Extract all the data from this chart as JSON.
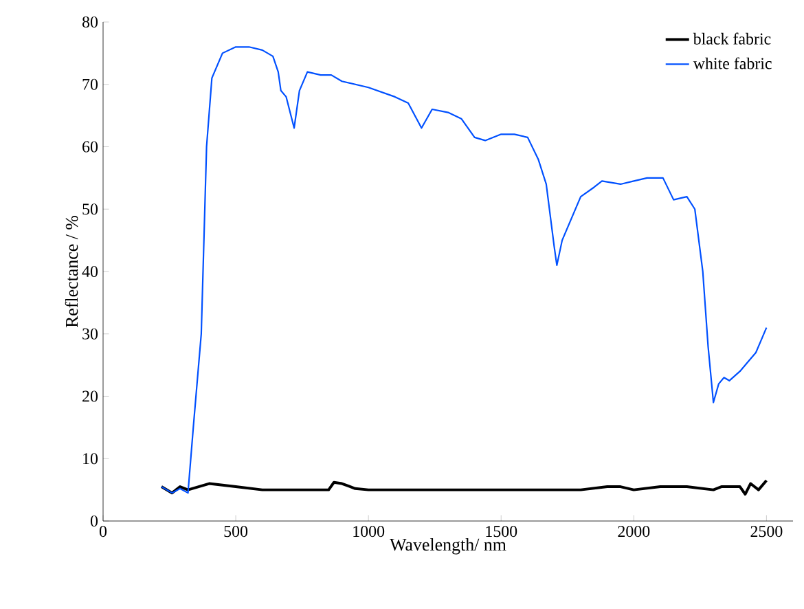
{
  "chart_data": {
    "type": "line",
    "xlabel": "Wavelength/ nm",
    "ylabel": "Reflectance / %",
    "xlim": [
      0,
      2600
    ],
    "xticks": [
      0,
      500,
      1000,
      1500,
      2000,
      2500
    ],
    "ylim": [
      0,
      80
    ],
    "yticks": [
      0,
      10,
      20,
      30,
      40,
      50,
      60,
      70,
      80
    ],
    "legend": "top right",
    "grid": false,
    "marker": "none",
    "line_style": "solid",
    "series": [
      {
        "name": "black fabric",
        "color": "#000000",
        "x": [
          220,
          260,
          290,
          320,
          400,
          500,
          600,
          800,
          850,
          870,
          900,
          950,
          1000,
          1200,
          1400,
          1800,
          1900,
          1950,
          2000,
          2100,
          2200,
          2300,
          2330,
          2400,
          2420,
          2440,
          2470,
          2500
        ],
        "values": [
          5.5,
          4.5,
          5.5,
          5,
          6,
          5.5,
          5,
          5,
          5,
          6.2,
          6,
          5.2,
          5,
          5,
          5,
          5,
          5.5,
          5.5,
          5,
          5.5,
          5.5,
          5,
          5.5,
          5.5,
          4.3,
          6,
          5,
          6.5
        ]
      },
      {
        "name": "white fabric",
        "color": "#0050ff",
        "x": [
          220,
          260,
          290,
          320,
          340,
          370,
          390,
          410,
          450,
          500,
          550,
          600,
          640,
          660,
          670,
          690,
          720,
          740,
          770,
          820,
          860,
          900,
          1000,
          1100,
          1150,
          1200,
          1240,
          1300,
          1350,
          1400,
          1440,
          1500,
          1550,
          1600,
          1640,
          1670,
          1700,
          1710,
          1730,
          1760,
          1800,
          1850,
          1880,
          1950,
          2000,
          2050,
          2110,
          2150,
          2200,
          2230,
          2260,
          2280,
          2300,
          2320,
          2340,
          2360,
          2400,
          2440,
          2460,
          2480,
          2500
        ],
        "values": [
          5.5,
          4.5,
          5.2,
          4.5,
          15,
          30,
          60,
          71,
          75,
          76,
          76,
          75.5,
          74.5,
          72,
          69,
          68,
          63,
          69,
          72,
          71.5,
          71.5,
          70.5,
          69.5,
          68,
          67,
          63,
          66,
          65.5,
          64.5,
          61.5,
          61,
          62,
          62,
          61.5,
          58,
          54,
          44,
          41,
          45,
          48,
          52,
          53.5,
          54.5,
          54,
          54.5,
          55,
          55,
          51.5,
          52,
          50,
          40,
          28,
          19,
          22,
          23,
          22.5,
          24,
          26,
          27,
          29,
          31
        ]
      }
    ]
  }
}
